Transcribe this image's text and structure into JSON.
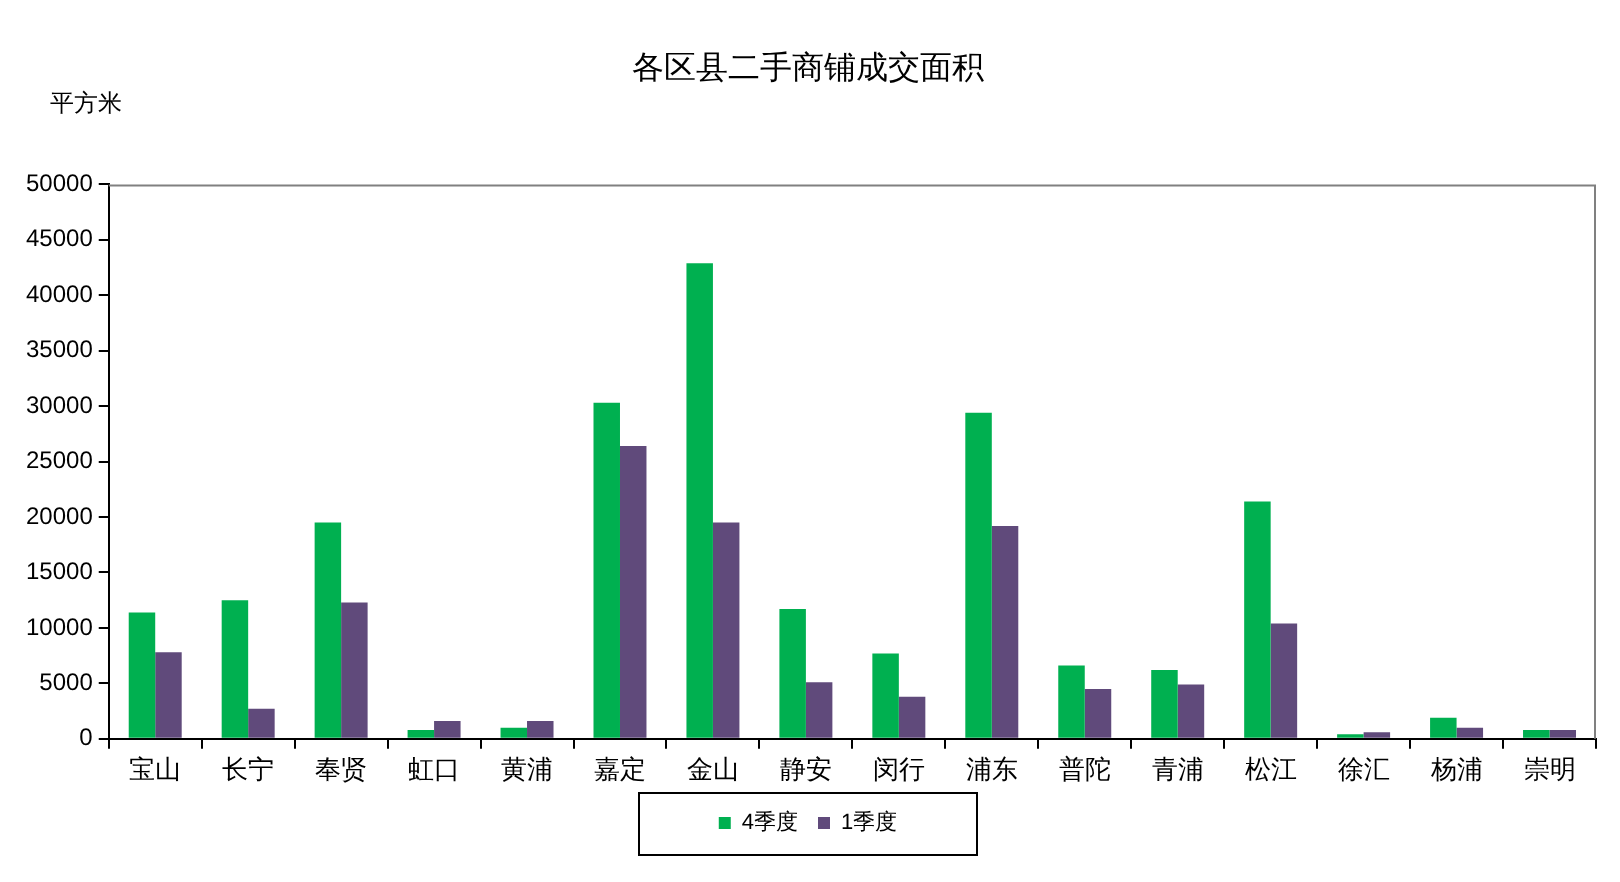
{
  "chart_data": {
    "type": "bar",
    "title": "各区县二手商铺成交面积",
    "ylabel": "平方米",
    "categories": [
      "宝山",
      "长宁",
      "奉贤",
      "虹口",
      "黄浦",
      "嘉定",
      "金山",
      "静安",
      "闵行",
      "浦东",
      "普陀",
      "青浦",
      "松江",
      "徐汇",
      "杨浦",
      "崇明"
    ],
    "series": [
      {
        "name": "4季度",
        "color": "#00b050",
        "values": [
          11400,
          12500,
          19500,
          800,
          1000,
          30300,
          42900,
          11700,
          7700,
          29400,
          6600,
          6200,
          21400,
          400,
          1900,
          800
        ]
      },
      {
        "name": "1季度",
        "color": "#604a7b",
        "values": [
          7800,
          2700,
          12300,
          1600,
          1600,
          26400,
          19500,
          5100,
          3800,
          19200,
          4500,
          4900,
          10400,
          600,
          1000,
          800
        ]
      }
    ],
    "ylim": [
      0,
      50000
    ],
    "yticks": [
      0,
      5000,
      10000,
      15000,
      20000,
      25000,
      30000,
      35000,
      40000,
      45000,
      50000
    ],
    "grid": false,
    "legend": "bottom"
  }
}
